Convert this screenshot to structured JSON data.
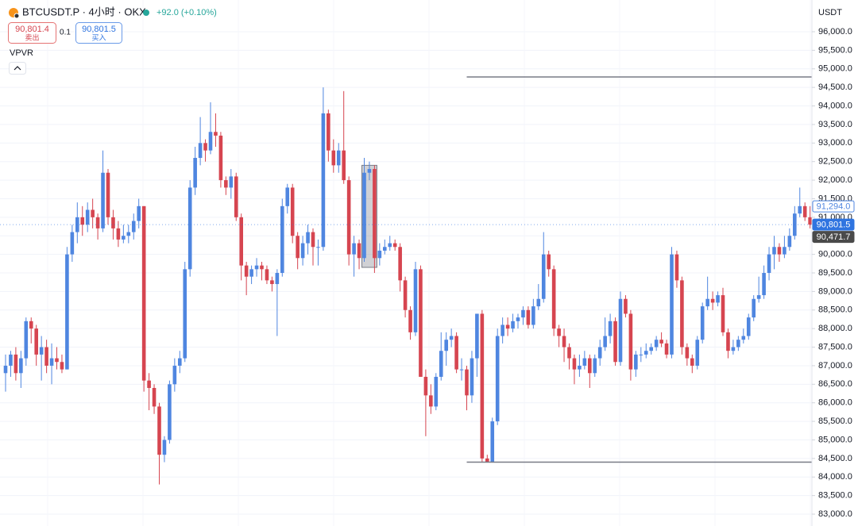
{
  "chart_data": {
    "type": "candlestick",
    "title": "BTCUSDT.P · 4小时 · OKX",
    "change": "+92.0 (+0.10%)",
    "sell_price": "90,801.4",
    "sell_label": "卖出",
    "quantity": "0.1",
    "buy_price": "90,801.5",
    "buy_label": "买入",
    "indicator": "VPVR",
    "currency": "USDT",
    "up_color": "#4f86e0",
    "down_color": "#d64550",
    "grid": true,
    "ylim": [
      82680,
      96855
    ],
    "yticks": [
      {
        "value": 83000,
        "label": "83,000.0"
      },
      {
        "value": 83500,
        "label": "83,500.0"
      },
      {
        "value": 84000,
        "label": "84,000.0"
      },
      {
        "value": 84500,
        "label": "84,500.0"
      },
      {
        "value": 85000,
        "label": "85,000.0"
      },
      {
        "value": 85500,
        "label": "85,500.0"
      },
      {
        "value": 86000,
        "label": "86,000.0"
      },
      {
        "value": 86500,
        "label": "86,500.0"
      },
      {
        "value": 87000,
        "label": "87,000.0"
      },
      {
        "value": 87500,
        "label": "87,500.0"
      },
      {
        "value": 88000,
        "label": "88,000.0"
      },
      {
        "value": 88500,
        "label": "88,500.0"
      },
      {
        "value": 89000,
        "label": "89,000.0"
      },
      {
        "value": 89500,
        "label": "89,500.0"
      },
      {
        "value": 90000,
        "label": "90,000.0"
      },
      {
        "value": 90500,
        "label": "90,500.0"
      },
      {
        "value": 91000,
        "label": "91,000.0"
      },
      {
        "value": 91500,
        "label": "91,500.0"
      },
      {
        "value": 92000,
        "label": "92,000.0"
      },
      {
        "value": 92500,
        "label": "92,500.0"
      },
      {
        "value": 93000,
        "label": "93,000.0"
      },
      {
        "value": 93500,
        "label": "93,500.0"
      },
      {
        "value": 94000,
        "label": "94,000.0"
      },
      {
        "value": 94500,
        "label": "94,500.0"
      },
      {
        "value": 95000,
        "label": "95,000.0"
      },
      {
        "value": 95500,
        "label": "95,500.0"
      },
      {
        "value": 96000,
        "label": "96,000.0"
      }
    ],
    "price_labels": [
      {
        "value": 91294.0,
        "label": "91,294.0",
        "color": "#4f86e0",
        "style": "outline"
      },
      {
        "value": 90801.5,
        "label": "90,801.5",
        "color": "#2f74e0",
        "style": "filled"
      },
      {
        "value": 90471.7,
        "label": "90,471.7",
        "color": "#4a4a4a",
        "style": "filled"
      }
    ],
    "levels": [
      {
        "value": 94780,
        "start_index": 90
      },
      {
        "value": 84400,
        "start_index": 90
      }
    ],
    "highlight": {
      "from_index": 70,
      "to_index": 72,
      "high": 92400,
      "low": 89650
    },
    "candles": [
      [
        86800,
        87300,
        86300,
        87000
      ],
      [
        87000,
        87400,
        86700,
        87300
      ],
      [
        87300,
        87500,
        86600,
        86800
      ],
      [
        86800,
        87400,
        86400,
        87200
      ],
      [
        87200,
        88300,
        87000,
        88200
      ],
      [
        88200,
        88300,
        87600,
        88000
      ],
      [
        88000,
        88100,
        87000,
        87300
      ],
      [
        87300,
        87800,
        86600,
        87500
      ],
      [
        87500,
        87700,
        86800,
        87000
      ],
      [
        87000,
        87600,
        86500,
        87200
      ],
      [
        87200,
        87500,
        86900,
        87100
      ],
      [
        87100,
        87300,
        86800,
        86900
      ],
      [
        86900,
        90200,
        86900,
        90000
      ],
      [
        90000,
        90800,
        89800,
        90600
      ],
      [
        90600,
        91400,
        90300,
        91000
      ],
      [
        91000,
        91300,
        90500,
        90800
      ],
      [
        90800,
        91400,
        90600,
        91200
      ],
      [
        91200,
        91500,
        90700,
        91000
      ],
      [
        91000,
        91100,
        90400,
        90700
      ],
      [
        90700,
        92800,
        90600,
        92200
      ],
      [
        92200,
        92300,
        90800,
        91000
      ],
      [
        91000,
        91200,
        90400,
        90700
      ],
      [
        90700,
        90900,
        90200,
        90400
      ],
      [
        90400,
        90800,
        90300,
        90500
      ],
      [
        90500,
        90800,
        90300,
        90600
      ],
      [
        90600,
        91100,
        90400,
        90900
      ],
      [
        90900,
        91500,
        90700,
        91300
      ],
      [
        91300,
        91300,
        86300,
        86600
      ],
      [
        86600,
        86800,
        85800,
        86400
      ],
      [
        86400,
        86500,
        85700,
        85900
      ],
      [
        85900,
        86000,
        83800,
        84600
      ],
      [
        84600,
        85100,
        84400,
        85000
      ],
      [
        85000,
        86600,
        84900,
        86500
      ],
      [
        86500,
        87200,
        86300,
        87000
      ],
      [
        87000,
        87400,
        86800,
        87200
      ],
      [
        87200,
        89800,
        87100,
        89600
      ],
      [
        89600,
        92000,
        89400,
        91800
      ],
      [
        91800,
        92900,
        91600,
        92600
      ],
      [
        92600,
        93700,
        92400,
        93000
      ],
      [
        93000,
        93100,
        92500,
        92800
      ],
      [
        92800,
        94100,
        92700,
        93300
      ],
      [
        93300,
        93800,
        92900,
        93200
      ],
      [
        93200,
        93300,
        91800,
        92000
      ],
      [
        92000,
        92100,
        91600,
        91800
      ],
      [
        91800,
        92300,
        91500,
        92100
      ],
      [
        92100,
        92200,
        90900,
        91000
      ],
      [
        91000,
        91100,
        89300,
        89700
      ],
      [
        89700,
        89800,
        88900,
        89400
      ],
      [
        89400,
        89700,
        89200,
        89600
      ],
      [
        89600,
        89900,
        89400,
        89700
      ],
      [
        89700,
        89800,
        89300,
        89600
      ],
      [
        89600,
        89700,
        89200,
        89300
      ],
      [
        89300,
        89400,
        89000,
        89200
      ],
      [
        89200,
        89600,
        87800,
        89500
      ],
      [
        89500,
        91500,
        89400,
        91300
      ],
      [
        91300,
        91900,
        91100,
        91800
      ],
      [
        91800,
        91900,
        90300,
        90500
      ],
      [
        90500,
        90600,
        89600,
        89900
      ],
      [
        89900,
        90500,
        89700,
        90300
      ],
      [
        90300,
        90800,
        90000,
        90600
      ],
      [
        90600,
        90700,
        89700,
        90200
      ],
      [
        90200,
        90400,
        89700,
        90200
      ],
      [
        90200,
        94500,
        90100,
        93800
      ],
      [
        93800,
        93900,
        92500,
        92800
      ],
      [
        92800,
        93100,
        92200,
        92400
      ],
      [
        92400,
        93000,
        92200,
        92800
      ],
      [
        92800,
        94400,
        91900,
        92000
      ],
      [
        92000,
        92100,
        89700,
        90000
      ],
      [
        90000,
        90500,
        89400,
        90300
      ],
      [
        90300,
        90400,
        89600,
        89900
      ],
      [
        89900,
        92600,
        89800,
        92200
      ],
      [
        92200,
        92500,
        92000,
        92300
      ],
      [
        92300,
        92400,
        89500,
        89900
      ],
      [
        89900,
        90300,
        89700,
        90100
      ],
      [
        90100,
        90400,
        90000,
        90200
      ],
      [
        90200,
        90500,
        90100,
        90300
      ],
      [
        90300,
        90400,
        90100,
        90200
      ],
      [
        90200,
        90300,
        89000,
        89300
      ],
      [
        89300,
        89400,
        88300,
        88500
      ],
      [
        88500,
        88600,
        87700,
        87900
      ],
      [
        87900,
        89800,
        87800,
        89600
      ],
      [
        89600,
        89700,
        86700,
        86700
      ],
      [
        86700,
        86900,
        85100,
        86200
      ],
      [
        86200,
        86500,
        85700,
        85900
      ],
      [
        85900,
        86800,
        85800,
        86700
      ],
      [
        86700,
        87900,
        86600,
        87400
      ],
      [
        87400,
        87900,
        87000,
        87700
      ],
      [
        87700,
        88000,
        87500,
        87800
      ],
      [
        87800,
        87900,
        86800,
        86900
      ],
      [
        86900,
        87200,
        86600,
        86900
      ],
      [
        86900,
        87000,
        85800,
        86200
      ],
      [
        86200,
        87400,
        86000,
        87200
      ],
      [
        87200,
        88400,
        86700,
        88400
      ],
      [
        88400,
        88500,
        84400,
        84500
      ],
      [
        84500,
        84600,
        84400,
        84400
      ],
      [
        84400,
        85600,
        84400,
        85500
      ],
      [
        85500,
        88000,
        85400,
        87800
      ],
      [
        87800,
        88300,
        87600,
        88100
      ],
      [
        88100,
        88300,
        87800,
        88000
      ],
      [
        88000,
        88400,
        87900,
        88200
      ],
      [
        88200,
        88400,
        88000,
        88300
      ],
      [
        88300,
        88600,
        88100,
        88500
      ],
      [
        88500,
        88600,
        88000,
        88100
      ],
      [
        88100,
        88800,
        88000,
        88600
      ],
      [
        88600,
        89200,
        88500,
        88800
      ],
      [
        88800,
        90600,
        88700,
        90000
      ],
      [
        90000,
        90100,
        89400,
        89600
      ],
      [
        89600,
        89700,
        87800,
        88000
      ],
      [
        88000,
        88100,
        87500,
        87800
      ],
      [
        87800,
        88000,
        87100,
        87500
      ],
      [
        87500,
        87600,
        86900,
        87200
      ],
      [
        87200,
        87300,
        86500,
        86900
      ],
      [
        86900,
        87300,
        86700,
        87000
      ],
      [
        87000,
        87400,
        86900,
        87200
      ],
      [
        87200,
        87300,
        86400,
        86800
      ],
      [
        86800,
        87300,
        86700,
        87200
      ],
      [
        87200,
        87700,
        87000,
        87500
      ],
      [
        87500,
        88300,
        87400,
        87800
      ],
      [
        87800,
        88400,
        87600,
        88200
      ],
      [
        88200,
        88300,
        87000,
        87100
      ],
      [
        87100,
        89000,
        87000,
        88800
      ],
      [
        88800,
        88900,
        88300,
        88400
      ],
      [
        88400,
        88500,
        86600,
        86900
      ],
      [
        86900,
        87400,
        86700,
        87300
      ],
      [
        87300,
        87500,
        87100,
        87300
      ],
      [
        87300,
        87600,
        87200,
        87400
      ],
      [
        87400,
        87600,
        87300,
        87500
      ],
      [
        87500,
        87800,
        87400,
        87700
      ],
      [
        87700,
        87900,
        87500,
        87600
      ],
      [
        87600,
        87700,
        87200,
        87300
      ],
      [
        87300,
        90200,
        87200,
        90000
      ],
      [
        90000,
        90100,
        89100,
        89300
      ],
      [
        89300,
        89400,
        87300,
        87500
      ],
      [
        87500,
        87600,
        87000,
        87200
      ],
      [
        87200,
        87300,
        86800,
        87000
      ],
      [
        87000,
        87800,
        86900,
        87700
      ],
      [
        87700,
        88700,
        87600,
        88600
      ],
      [
        88600,
        89400,
        88500,
        88800
      ],
      [
        88800,
        89000,
        88500,
        88700
      ],
      [
        88700,
        89000,
        88600,
        88900
      ],
      [
        88900,
        89100,
        87800,
        87900
      ],
      [
        87900,
        88000,
        87200,
        87400
      ],
      [
        87400,
        87700,
        87300,
        87500
      ],
      [
        87500,
        87800,
        87400,
        87700
      ],
      [
        87700,
        88000,
        87600,
        87800
      ],
      [
        87800,
        88400,
        87700,
        88300
      ],
      [
        88300,
        88900,
        88200,
        88800
      ],
      [
        88800,
        89400,
        88700,
        88900
      ],
      [
        88900,
        89700,
        88800,
        89500
      ],
      [
        89500,
        90200,
        89300,
        90000
      ],
      [
        90000,
        90500,
        89600,
        90200
      ],
      [
        90200,
        90300,
        89800,
        90000
      ],
      [
        90000,
        90500,
        89900,
        90200
      ],
      [
        90200,
        90700,
        90100,
        90500
      ],
      [
        90500,
        91300,
        90400,
        91100
      ],
      [
        91100,
        91800,
        91000,
        91300
      ],
      [
        91300,
        91400,
        90900,
        91000
      ],
      [
        91000,
        91300,
        90700,
        90801.5
      ]
    ]
  }
}
